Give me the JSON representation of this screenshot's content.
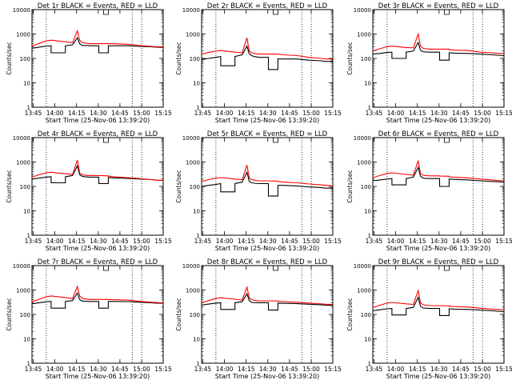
{
  "figure": {
    "xlabel": "Start Time (25-Nov-06 13:39:20)",
    "ylabel": "Counts/sec",
    "x_tick_labels": [
      "13:45",
      "14:00",
      "14:15",
      "14:30",
      "14:45",
      "15:00",
      "15:15"
    ],
    "y_tick_labels": [
      "1",
      "10",
      "100",
      "1000",
      "10000"
    ],
    "colors": {
      "events": "#000000",
      "lld": "#ff0000",
      "axes": "#000000"
    }
  },
  "chart_data": [
    {
      "type": "line",
      "title": "Det 1r BLACK = Events, RED = LLD",
      "x": [
        0,
        3,
        6,
        8,
        8,
        14,
        14,
        17,
        19,
        20,
        21,
        22,
        24,
        27,
        28,
        28,
        32,
        32,
        34,
        40,
        45,
        50,
        52,
        55
      ],
      "xlim": [
        0,
        55
      ],
      "ylim": [
        1,
        10000
      ],
      "yscale": "log",
      "grid": false,
      "vlines": [
        6,
        42,
        46
      ],
      "series": [
        {
          "name": "Events",
          "color": "#000000",
          "values": [
            260,
            290,
            320,
            330,
            170,
            170,
            330,
            360,
            700,
            400,
            340,
            340,
            330,
            330,
            330,
            170,
            170,
            330,
            330,
            330,
            310,
            300,
            290,
            280
          ]
        },
        {
          "name": "LLD",
          "color": "#ff0000",
          "values": [
            320,
            410,
            520,
            560,
            560,
            480,
            480,
            440,
            1350,
            560,
            450,
            430,
            400,
            400,
            400,
            400,
            400,
            400,
            400,
            380,
            340,
            310,
            300,
            290
          ]
        }
      ]
    },
    {
      "type": "line",
      "title": "Det 2r BLACK = Events, RED = LLD",
      "x": [
        0,
        3,
        6,
        8,
        8,
        14,
        14,
        17,
        19,
        20,
        21,
        22,
        24,
        27,
        28,
        28,
        32,
        32,
        34,
        40,
        45,
        50,
        52,
        55
      ],
      "xlim": [
        0,
        55
      ],
      "ylim": [
        1,
        10000
      ],
      "yscale": "log",
      "grid": false,
      "vlines": [
        6,
        42,
        46
      ],
      "series": [
        {
          "name": "Events",
          "color": "#000000",
          "values": [
            90,
            100,
            110,
            120,
            50,
            50,
            120,
            140,
            320,
            150,
            130,
            120,
            110,
            110,
            110,
            35,
            35,
            95,
            95,
            95,
            85,
            80,
            75,
            75
          ]
        },
        {
          "name": "LLD",
          "color": "#ff0000",
          "values": [
            150,
            175,
            200,
            210,
            210,
            180,
            180,
            170,
            700,
            200,
            170,
            160,
            150,
            150,
            150,
            150,
            150,
            150,
            140,
            130,
            110,
            100,
            95,
            95
          ]
        }
      ]
    },
    {
      "type": "line",
      "title": "Det 3r BLACK = Events, RED = LLD",
      "x": [
        0,
        3,
        6,
        8,
        8,
        14,
        14,
        17,
        19,
        20,
        21,
        22,
        24,
        27,
        28,
        28,
        32,
        32,
        34,
        40,
        45,
        50,
        52,
        55
      ],
      "xlim": [
        0,
        55
      ],
      "ylim": [
        1,
        10000
      ],
      "yscale": "log",
      "grid": false,
      "vlines": [
        6,
        42,
        46
      ],
      "series": [
        {
          "name": "Events",
          "color": "#000000",
          "values": [
            150,
            160,
            175,
            180,
            100,
            100,
            180,
            200,
            450,
            220,
            190,
            185,
            180,
            180,
            180,
            85,
            85,
            170,
            165,
            160,
            150,
            140,
            135,
            130
          ]
        },
        {
          "name": "LLD",
          "color": "#ff0000",
          "values": [
            200,
            250,
            300,
            320,
            320,
            280,
            280,
            270,
            1000,
            320,
            260,
            250,
            240,
            240,
            240,
            240,
            240,
            230,
            220,
            210,
            180,
            170,
            160,
            160
          ]
        }
      ]
    },
    {
      "type": "line",
      "title": "Det 4r BLACK = Events, RED = LLD",
      "x": [
        0,
        3,
        6,
        8,
        8,
        14,
        14,
        17,
        19,
        20,
        21,
        22,
        24,
        27,
        28,
        28,
        32,
        32,
        34,
        40,
        45,
        50,
        52,
        55
      ],
      "xlim": [
        0,
        55
      ],
      "ylim": [
        1,
        10000
      ],
      "yscale": "log",
      "grid": false,
      "vlines": [
        6,
        42,
        46
      ],
      "series": [
        {
          "name": "Events",
          "color": "#000000",
          "values": [
            200,
            220,
            240,
            250,
            140,
            140,
            250,
            280,
            700,
            300,
            260,
            250,
            240,
            240,
            240,
            130,
            130,
            230,
            225,
            215,
            200,
            190,
            180,
            175
          ]
        },
        {
          "name": "LLD",
          "color": "#ff0000",
          "values": [
            240,
            300,
            360,
            380,
            380,
            330,
            330,
            310,
            1200,
            360,
            300,
            290,
            280,
            280,
            280,
            280,
            270,
            260,
            250,
            230,
            210,
            190,
            180,
            175
          ]
        }
      ]
    },
    {
      "type": "line",
      "title": "Det 5r BLACK = Events, RED = LLD",
      "x": [
        0,
        3,
        6,
        8,
        8,
        14,
        14,
        17,
        19,
        20,
        21,
        22,
        24,
        27,
        28,
        28,
        32,
        32,
        34,
        40,
        45,
        50,
        52,
        55
      ],
      "xlim": [
        0,
        55
      ],
      "ylim": [
        1,
        10000
      ],
      "yscale": "log",
      "grid": false,
      "vlines": [
        6,
        42,
        46
      ],
      "series": [
        {
          "name": "Events",
          "color": "#000000",
          "values": [
            100,
            110,
            120,
            130,
            60,
            60,
            130,
            150,
            380,
            160,
            140,
            135,
            130,
            130,
            130,
            40,
            40,
            110,
            110,
            105,
            95,
            90,
            85,
            85
          ]
        },
        {
          "name": "LLD",
          "color": "#ff0000",
          "values": [
            160,
            190,
            220,
            230,
            230,
            200,
            200,
            190,
            750,
            220,
            190,
            180,
            170,
            170,
            170,
            170,
            165,
            160,
            150,
            140,
            125,
            115,
            110,
            105
          ]
        }
      ]
    },
    {
      "type": "line",
      "title": "Det 6r BLACK = Events, RED = LLD",
      "x": [
        0,
        3,
        6,
        8,
        8,
        14,
        14,
        17,
        19,
        20,
        21,
        22,
        24,
        27,
        28,
        28,
        32,
        32,
        34,
        40,
        45,
        50,
        52,
        55
      ],
      "xlim": [
        0,
        55
      ],
      "ylim": [
        1,
        10000
      ],
      "yscale": "log",
      "grid": false,
      "vlines": [
        6,
        42,
        46
      ],
      "series": [
        {
          "name": "Events",
          "color": "#000000",
          "values": [
            170,
            185,
            200,
            210,
            115,
            115,
            210,
            240,
            600,
            260,
            220,
            215,
            210,
            210,
            210,
            100,
            100,
            200,
            195,
            185,
            170,
            160,
            155,
            150
          ]
        },
        {
          "name": "LLD",
          "color": "#ff0000",
          "values": [
            230,
            280,
            340,
            360,
            360,
            310,
            310,
            290,
            1100,
            340,
            290,
            280,
            270,
            270,
            270,
            265,
            260,
            250,
            240,
            225,
            200,
            185,
            175,
            170
          ]
        }
      ]
    },
    {
      "type": "line",
      "title": "Det 7r BLACK = Events, RED = LLD",
      "x": [
        0,
        3,
        6,
        8,
        8,
        14,
        14,
        17,
        19,
        20,
        21,
        22,
        24,
        27,
        28,
        28,
        32,
        32,
        34,
        40,
        45,
        50,
        52,
        55
      ],
      "xlim": [
        0,
        55
      ],
      "ylim": [
        1,
        10000
      ],
      "yscale": "log",
      "grid": false,
      "vlines": [
        6,
        42,
        46
      ],
      "series": [
        {
          "name": "Events",
          "color": "#000000",
          "values": [
            270,
            300,
            330,
            340,
            180,
            180,
            340,
            370,
            750,
            410,
            350,
            350,
            340,
            340,
            340,
            180,
            180,
            340,
            340,
            335,
            315,
            300,
            290,
            285
          ]
        },
        {
          "name": "LLD",
          "color": "#ff0000",
          "values": [
            330,
            420,
            530,
            570,
            570,
            490,
            490,
            450,
            1400,
            570,
            460,
            440,
            410,
            410,
            410,
            410,
            410,
            405,
            400,
            385,
            345,
            315,
            305,
            295
          ]
        }
      ]
    },
    {
      "type": "line",
      "title": "Det 8r BLACK = Events, RED = LLD",
      "x": [
        0,
        3,
        6,
        8,
        8,
        14,
        14,
        17,
        19,
        20,
        21,
        22,
        24,
        27,
        28,
        28,
        32,
        32,
        34,
        40,
        45,
        50,
        52,
        55
      ],
      "xlim": [
        0,
        55
      ],
      "ylim": [
        1,
        10000
      ],
      "yscale": "log",
      "grid": false,
      "vlines": [
        6,
        42,
        46
      ],
      "series": [
        {
          "name": "Events",
          "color": "#000000",
          "values": [
            240,
            265,
            290,
            300,
            160,
            160,
            300,
            330,
            700,
            360,
            310,
            305,
            300,
            300,
            300,
            150,
            150,
            290,
            285,
            275,
            260,
            250,
            240,
            235
          ]
        },
        {
          "name": "LLD",
          "color": "#ff0000",
          "values": [
            300,
            370,
            450,
            480,
            480,
            420,
            420,
            390,
            1300,
            470,
            400,
            380,
            360,
            360,
            360,
            360,
            355,
            345,
            335,
            315,
            290,
            270,
            260,
            255
          ]
        }
      ]
    },
    {
      "type": "line",
      "title": "Det 9r BLACK = Events, RED = LLD",
      "x": [
        0,
        3,
        6,
        8,
        8,
        14,
        14,
        17,
        19,
        20,
        21,
        22,
        24,
        27,
        28,
        28,
        32,
        32,
        34,
        40,
        45,
        50,
        52,
        55
      ],
      "xlim": [
        0,
        55
      ],
      "ylim": [
        1,
        10000
      ],
      "yscale": "log",
      "grid": false,
      "vlines": [
        6,
        42,
        46
      ],
      "series": [
        {
          "name": "Events",
          "color": "#000000",
          "values": [
            140,
            155,
            170,
            175,
            95,
            95,
            175,
            195,
            500,
            215,
            185,
            180,
            175,
            175,
            175,
            90,
            90,
            170,
            165,
            160,
            150,
            140,
            135,
            130
          ]
        },
        {
          "name": "LLD",
          "color": "#ff0000",
          "values": [
            190,
            240,
            290,
            310,
            310,
            270,
            270,
            255,
            950,
            300,
            250,
            240,
            230,
            230,
            230,
            230,
            225,
            220,
            210,
            200,
            180,
            165,
            160,
            155
          ]
        }
      ]
    }
  ]
}
